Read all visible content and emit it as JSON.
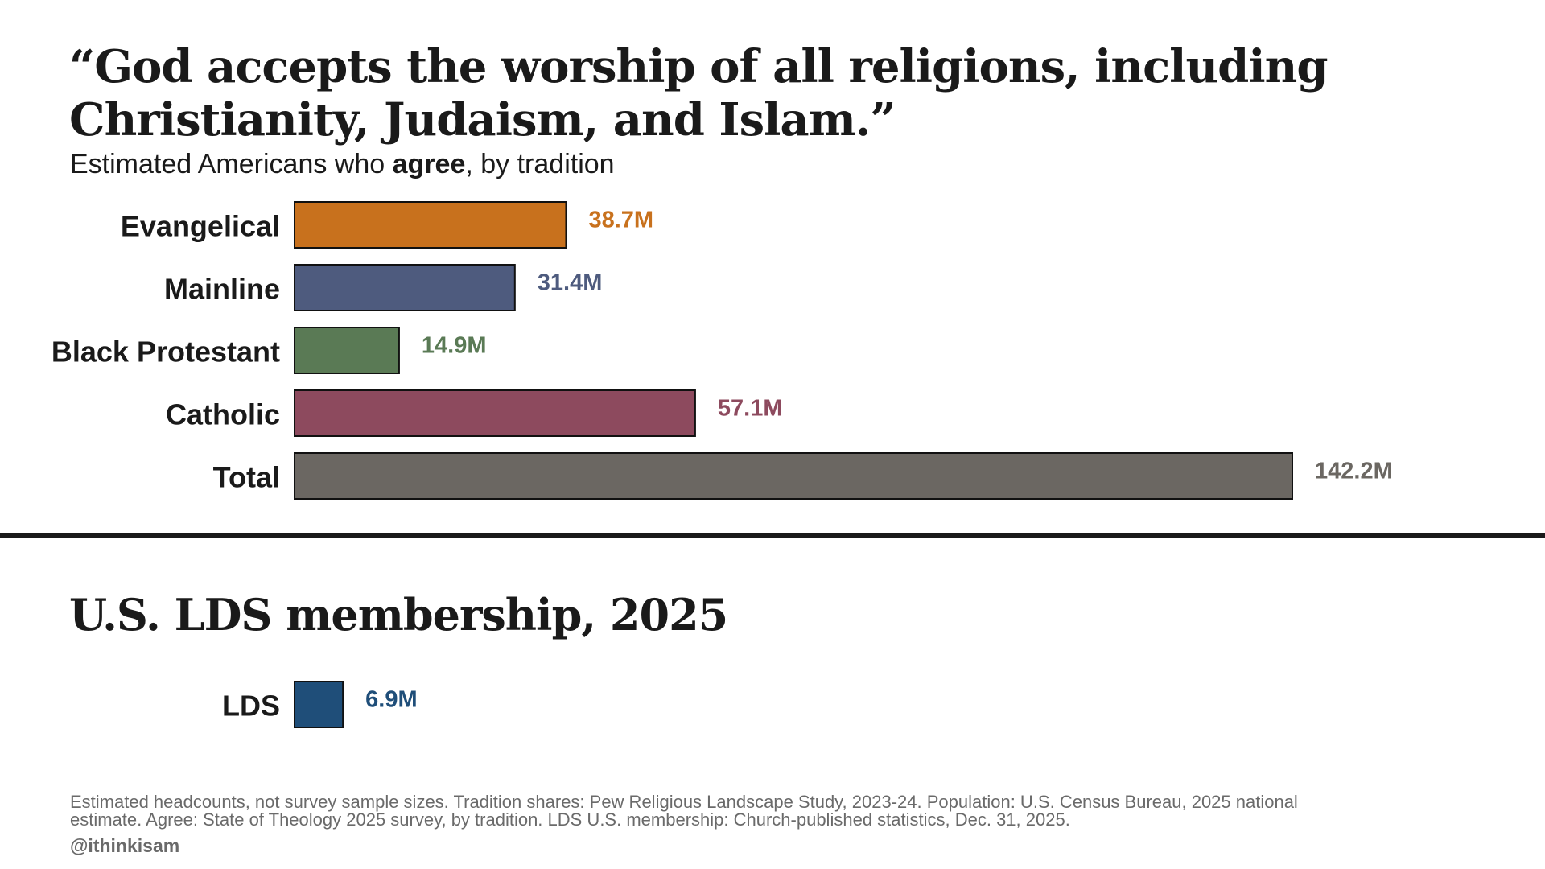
{
  "chart_data": [
    {
      "type": "bar",
      "orientation": "horizontal",
      "title": "“God accepts the worship of all religions, including Christianity, Judaism, and Islam.”",
      "subtitle": {
        "prefix": "Estimated Americans who ",
        "emphasis": "agree",
        "suffix": ", by tradition"
      },
      "categories": [
        "Evangelical",
        "Mainline",
        "Black Protestant",
        "Catholic",
        "Total"
      ],
      "values": [
        38.7,
        31.4,
        14.9,
        57.1,
        142.2
      ],
      "value_labels": [
        "38.7M",
        "31.4M",
        "14.9M",
        "57.1M",
        "142.2M"
      ],
      "colors": [
        "#c8711d",
        "#4e5b7e",
        "#5a7a55",
        "#8d4a5e",
        "#6b6762"
      ],
      "unit": "M",
      "xlim": [
        0,
        142.2
      ],
      "grid": false,
      "legend": "none"
    },
    {
      "type": "bar",
      "orientation": "horizontal",
      "title": "U.S. LDS membership, 2025",
      "categories": [
        "LDS"
      ],
      "values": [
        6.9
      ],
      "value_labels": [
        "6.9M"
      ],
      "colors": [
        "#1f4e79"
      ],
      "unit": "M",
      "xlim": [
        0,
        142.2
      ],
      "grid": false,
      "legend": "none"
    }
  ],
  "footer": {
    "notes_line1": "Estimated headcounts, not survey sample sizes. Tradition shares: Pew Religious Landscape Study, 2023-24. Population: U.S. Census Bureau, 2025 national",
    "notes_line2": "estimate. Agree: State of Theology 2025 survey, by tradition. LDS U.S. membership: Church-published statistics, Dec. 31, 2025.",
    "handle": "@ithinkisam"
  },
  "colors": {
    "text": "#1a1a1a",
    "muted": "#6a6a6a",
    "divider": "#1a1a1a"
  }
}
